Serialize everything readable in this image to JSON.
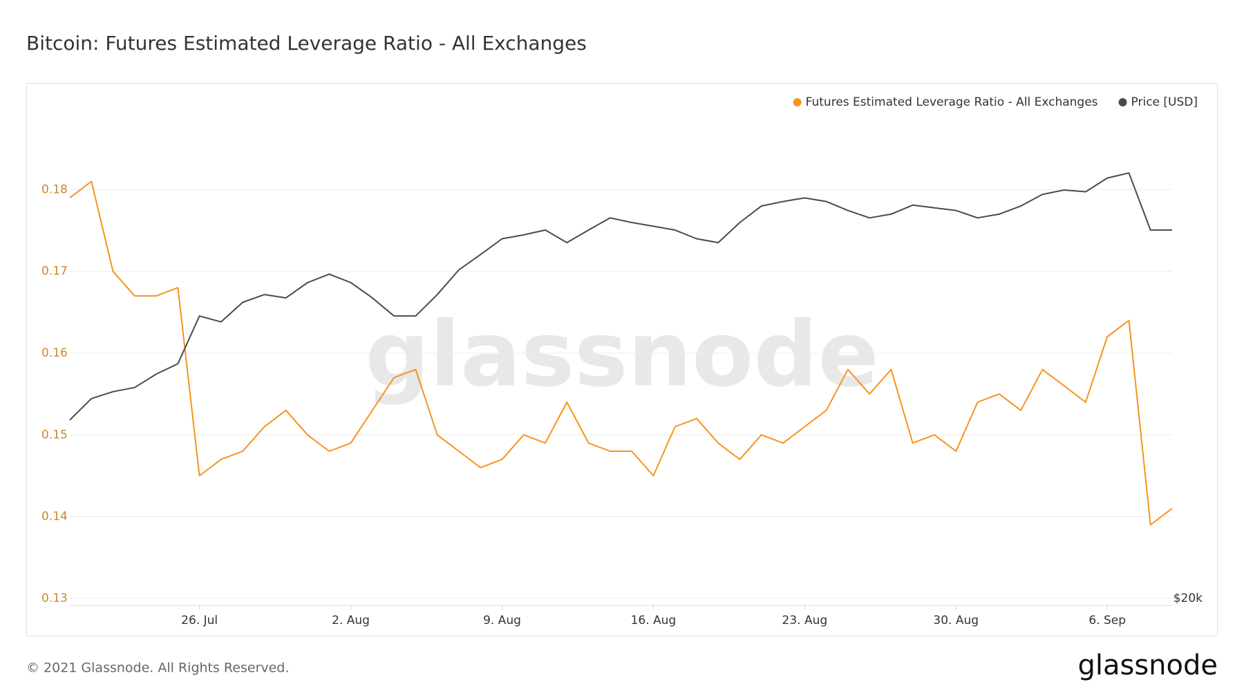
{
  "chart_data": {
    "type": "line",
    "title": "Bitcoin: Futures Estimated Leverage Ratio - All Exchanges",
    "watermark": "glassnode",
    "footer": "© 2021 Glassnode. All Rights Reserved.",
    "logo": "glassnode",
    "categories": [
      null,
      null,
      null,
      null,
      null,
      null,
      "26. Jul",
      null,
      null,
      null,
      null,
      null,
      null,
      "2. Aug",
      null,
      null,
      null,
      null,
      null,
      null,
      "9. Aug",
      null,
      null,
      null,
      null,
      null,
      null,
      "16. Aug",
      null,
      null,
      null,
      null,
      null,
      null,
      "23. Aug",
      null,
      null,
      null,
      null,
      null,
      null,
      "30. Aug",
      null,
      null,
      null,
      null,
      null,
      null,
      "6. Sep",
      null,
      null,
      null
    ],
    "series": [
      {
        "name": "Futures Estimated Leverage Ratio - All Exchanges",
        "color": "#f7931a",
        "axis": "y",
        "values": [
          0.179,
          0.181,
          0.17,
          0.167,
          0.167,
          0.168,
          0.145,
          0.147,
          0.148,
          0.151,
          0.153,
          0.15,
          0.148,
          0.149,
          0.153,
          0.157,
          0.158,
          0.15,
          0.148,
          0.146,
          0.147,
          0.15,
          0.149,
          0.154,
          0.149,
          0.148,
          0.148,
          0.145,
          0.151,
          0.152,
          0.149,
          0.147,
          0.15,
          0.149,
          0.151,
          0.153,
          0.158,
          0.155,
          0.158,
          0.149,
          0.15,
          0.148,
          0.154,
          0.155,
          0.153,
          0.158,
          0.156,
          0.154,
          0.162,
          0.164,
          0.139,
          0.141
        ]
      },
      {
        "name": "Price [USD]",
        "color": "#4a4a4a",
        "axis": "y2",
        "values": [
          30000,
          31500,
          32000,
          32300,
          33300,
          34100,
          38000,
          37500,
          39200,
          39900,
          39600,
          41000,
          41800,
          41000,
          39600,
          38000,
          38000,
          39900,
          42200,
          43700,
          45300,
          45700,
          46200,
          44900,
          46200,
          47500,
          47000,
          46600,
          46200,
          45300,
          44900,
          47000,
          48800,
          49300,
          49700,
          49300,
          48300,
          47500,
          47900,
          48900,
          48600,
          48300,
          47500,
          47900,
          48800,
          50100,
          50600,
          50400,
          52000,
          52600,
          46200,
          46200
        ]
      }
    ],
    "ylim": [
      0.13,
      0.19
    ],
    "yticks": [
      0.13,
      0.14,
      0.15,
      0.16,
      0.17,
      0.18
    ],
    "y2lim": [
      20000,
      61000
    ],
    "y2scale": "log",
    "y2ticks": [
      {
        "value": 20000,
        "label": "$20k"
      }
    ],
    "grid": true,
    "legend": "top-right"
  }
}
